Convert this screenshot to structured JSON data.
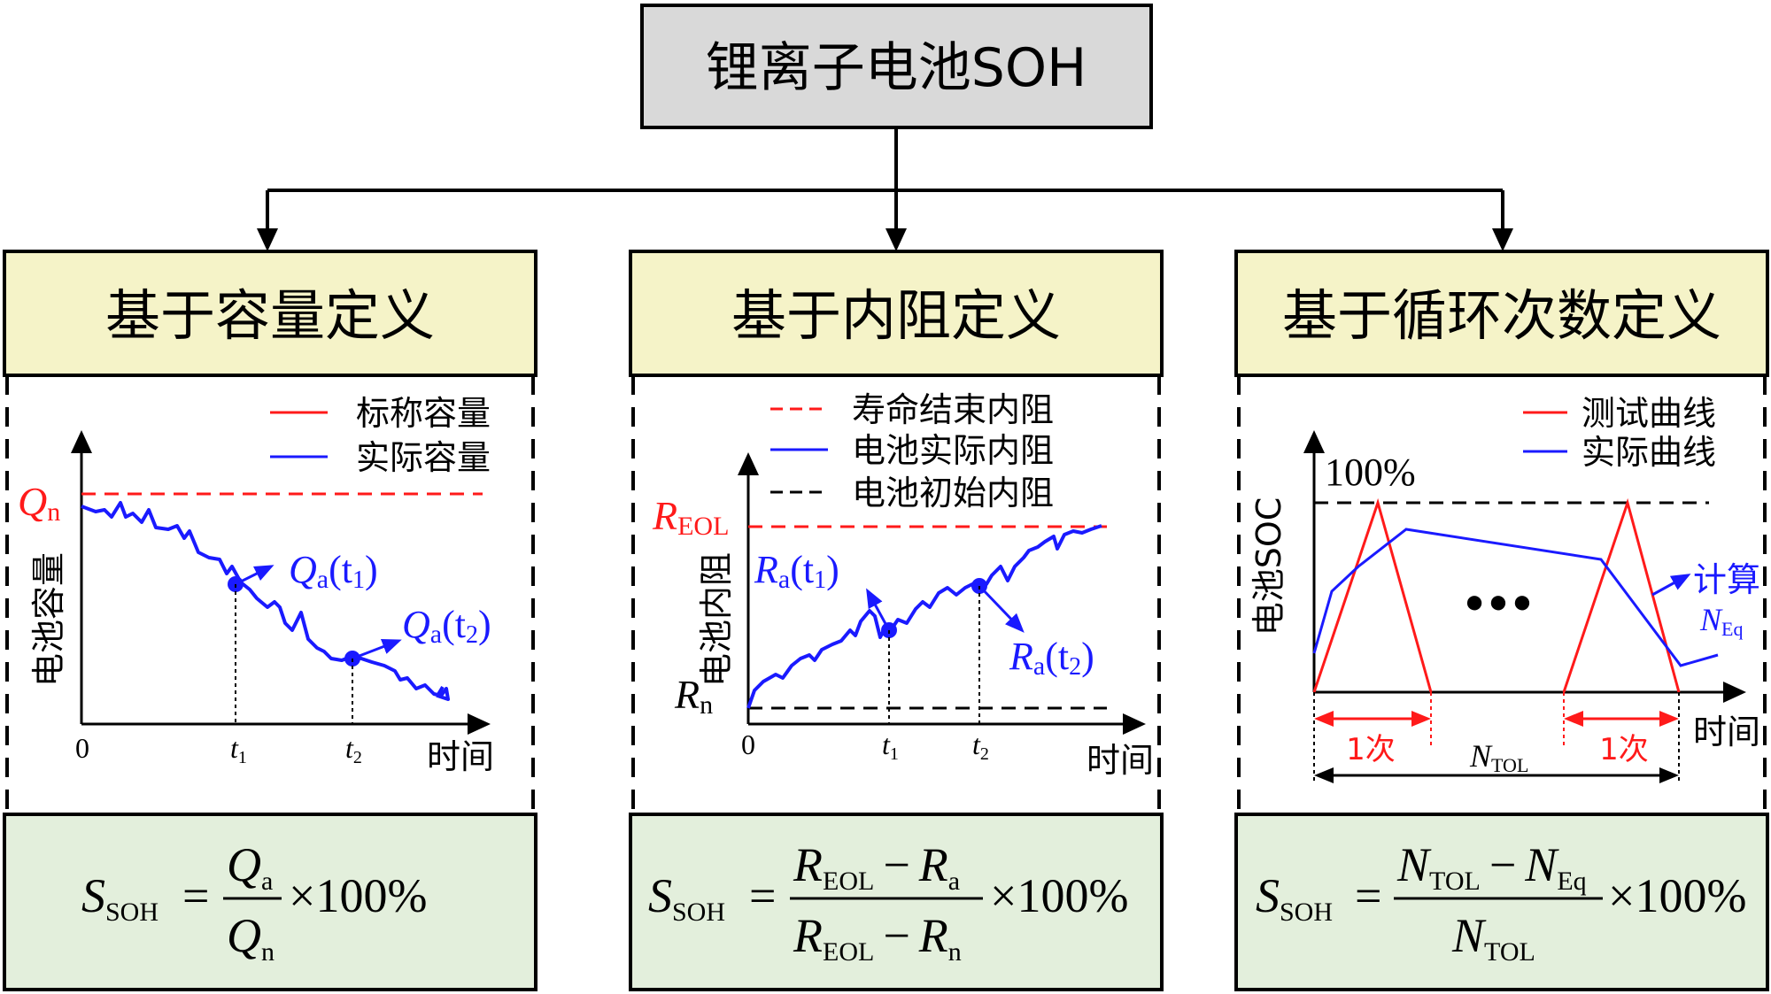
{
  "title": "锂离子电池SOH",
  "colors": {
    "title_bg": "#d9d9d9",
    "header_bg": "#f5f3c8",
    "formula_bg": "#e3efdc",
    "red": "#ff1a1a",
    "blue": "#1a1aff",
    "black": "#000000"
  },
  "panels": [
    {
      "header": "基于容量定义",
      "legend": [
        "标称容量",
        "实际容量"
      ],
      "ylabel": "电池容量",
      "xlabel": "时间",
      "origin": "0",
      "tick1": "t",
      "tick1_sub": "1",
      "tick2": "t",
      "tick2_sub": "2",
      "ref_label": "Q",
      "ref_sub": "n",
      "pt1_label": "Q",
      "pt1_sub": "a",
      "pt1_arg": "(t",
      "pt1_argsub": "1",
      "pt2_label": "Q",
      "pt2_sub": "a",
      "pt2_arg": "(t",
      "pt2_argsub": "2",
      "close": ")",
      "formula": {
        "lhs": "S",
        "lhs_sub": "SOH",
        "eq": "=",
        "num": "Q",
        "num_sub": "a",
        "den": "Q",
        "den_sub": "n",
        "tail": "×100%"
      }
    },
    {
      "header": "基于内阻定义",
      "legend": [
        "寿命结束内阻",
        "电池实际内阻",
        "电池初始内阻"
      ],
      "ylabel": "电池内阻",
      "xlabel": "时间",
      "origin": "0",
      "tick1": "t",
      "tick1_sub": "1",
      "tick2": "t",
      "tick2_sub": "2",
      "ref_top": "R",
      "ref_top_sub": "EOL",
      "ref_bot": "R",
      "ref_bot_sub": "n",
      "pt1_label": "R",
      "pt1_sub": "a",
      "pt1_arg": "(t",
      "pt1_argsub": "1",
      "pt2_label": "R",
      "pt2_sub": "a",
      "pt2_arg": "(t",
      "pt2_argsub": "2",
      "close": ")",
      "formula": {
        "lhs": "S",
        "lhs_sub": "SOH",
        "eq": "=",
        "num_a": "R",
        "num_a_sub": "EOL",
        "num_op": "−",
        "num_b": "R",
        "num_b_sub": "a",
        "den_a": "R",
        "den_a_sub": "EOL",
        "den_op": "−",
        "den_b": "R",
        "den_b_sub": "n",
        "tail": "×100%"
      }
    },
    {
      "header": "基于循环次数定义",
      "legend": [
        "测试曲线",
        "实际曲线"
      ],
      "ylabel": "电池SOC",
      "xlabel": "时间",
      "top_label": "100%",
      "dots": "●●●",
      "calc": "计算",
      "calc_sym": "N",
      "calc_sub": "Eq",
      "cycle1": "1次",
      "cycle2": "1次",
      "total": "N",
      "total_sub": "TOL",
      "formula": {
        "lhs": "S",
        "lhs_sub": "SOH",
        "eq": "=",
        "num_a": "N",
        "num_a_sub": "TOL",
        "num_op": "−",
        "num_b": "N",
        "num_b_sub": "Eq",
        "den": "N",
        "den_sub": "TOL",
        "tail": "×100%"
      }
    }
  ]
}
